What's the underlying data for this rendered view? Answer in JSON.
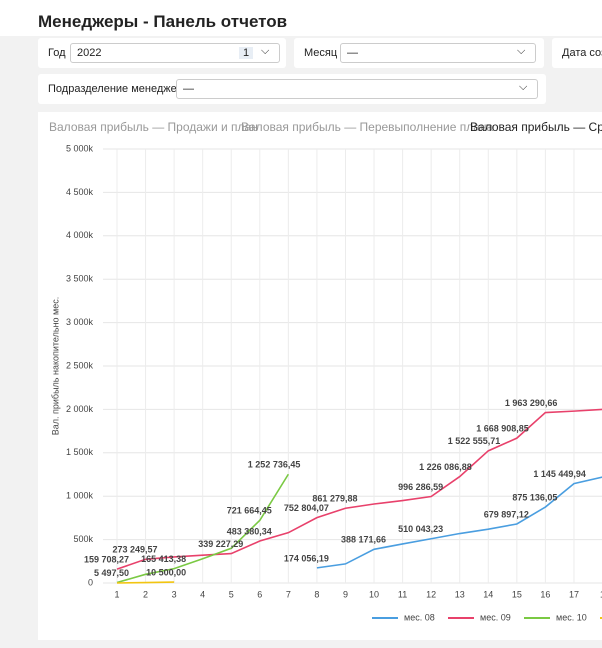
{
  "header": {
    "title": "Менеджеры - Панель отчетов"
  },
  "filters": [
    {
      "label": "Год",
      "value": "2022",
      "badge": "1"
    },
    {
      "label": "Месяц",
      "value": "—"
    },
    {
      "label": "Дата созд"
    },
    {
      "label": "Подразделение менеджера",
      "value": "—"
    }
  ],
  "tabs": [
    "Валовая прибыль — Продажи и план",
    "Валовая прибыль — Перевыполнение плана",
    "Валовая прибыль — Сравн"
  ],
  "chart_data": {
    "type": "line",
    "y_label": "Вал. прибыль накопительно мес.",
    "categories": [
      "1",
      "2",
      "3",
      "4",
      "5",
      "6",
      "7",
      "8",
      "9",
      "10",
      "11",
      "12",
      "13",
      "14",
      "15",
      "16",
      "17",
      "1"
    ],
    "ylim": [
      0,
      5000000
    ],
    "yticks": [
      0,
      {
        "value": 500000,
        "label": "500k"
      },
      {
        "value": 1000000,
        "label": "1 000k"
      },
      {
        "value": 1500000,
        "label": "1 500k"
      },
      {
        "value": 2000000,
        "label": "2 000k"
      },
      {
        "value": 2500000,
        "label": "2 500k"
      },
      {
        "value": 3000000,
        "label": "3 000k"
      },
      {
        "value": 3500000,
        "label": "3 500k"
      },
      {
        "value": 4000000,
        "label": "4 000k"
      },
      {
        "value": 4500000,
        "label": "4 500k"
      },
      {
        "value": 5000000,
        "label": "5 000k"
      }
    ],
    "grid": true,
    "series": [
      {
        "name": "мес. 08",
        "color": "#4a9ee0",
        "values": [
          null,
          null,
          null,
          null,
          null,
          null,
          null,
          174056.19,
          220000,
          388171.66,
          450000,
          510043.23,
          570000,
          620000,
          679897.12,
          875136.05,
          1145449.94,
          1220000
        ],
        "value_labels": [
          null,
          null,
          null,
          null,
          null,
          null,
          null,
          "174 056,19",
          null,
          "388 171,66",
          null,
          "510 043,23",
          null,
          null,
          "679 897,12",
          "875 136,05",
          "1 145 449,94",
          null
        ]
      },
      {
        "name": "мес. 09",
        "color": "#e8416b",
        "values": [
          159708.27,
          273249.57,
          300000,
          320000,
          339227.29,
          483380.34,
          580000,
          752804.07,
          861279.88,
          910000,
          950000,
          996286.59,
          1226086.88,
          1522555.71,
          1668908.85,
          1963290.66,
          1980000,
          2000000
        ],
        "value_labels": [
          "159 708,27",
          "273 249,57",
          null,
          null,
          "339 227,29",
          "483 380,34",
          null,
          "752 804,07",
          "861 279,88",
          null,
          null,
          "996 286,59",
          "1 226 086,88",
          "1 522 555,71",
          "1 668 908,85",
          "1 963 290,66",
          null,
          null
        ]
      },
      {
        "name": "мес. 10",
        "color": "#7ac943",
        "values": [
          5497.5,
          100000,
          165413.38,
          280000,
          400000,
          721664.45,
          1252736.45,
          null,
          null,
          null,
          null,
          null,
          null,
          null,
          null,
          null,
          null,
          null
        ],
        "value_labels": [
          "5 497,50",
          null,
          "165 413,38",
          null,
          null,
          "721 664,45",
          "1 252 736,45",
          null,
          null,
          null,
          null,
          null,
          null,
          null,
          null,
          null,
          null,
          null
        ]
      },
      {
        "color": "#f2c511",
        "values": [
          0,
          5000,
          10500,
          null,
          null,
          null,
          null,
          null,
          null,
          null,
          null,
          null,
          null,
          null,
          null,
          null,
          null,
          null
        ],
        "value_labels": [
          null,
          null,
          "10 500,00",
          null,
          null,
          null,
          null,
          null,
          null,
          null,
          null,
          null,
          null,
          null,
          null,
          null,
          null,
          null
        ]
      }
    ]
  }
}
